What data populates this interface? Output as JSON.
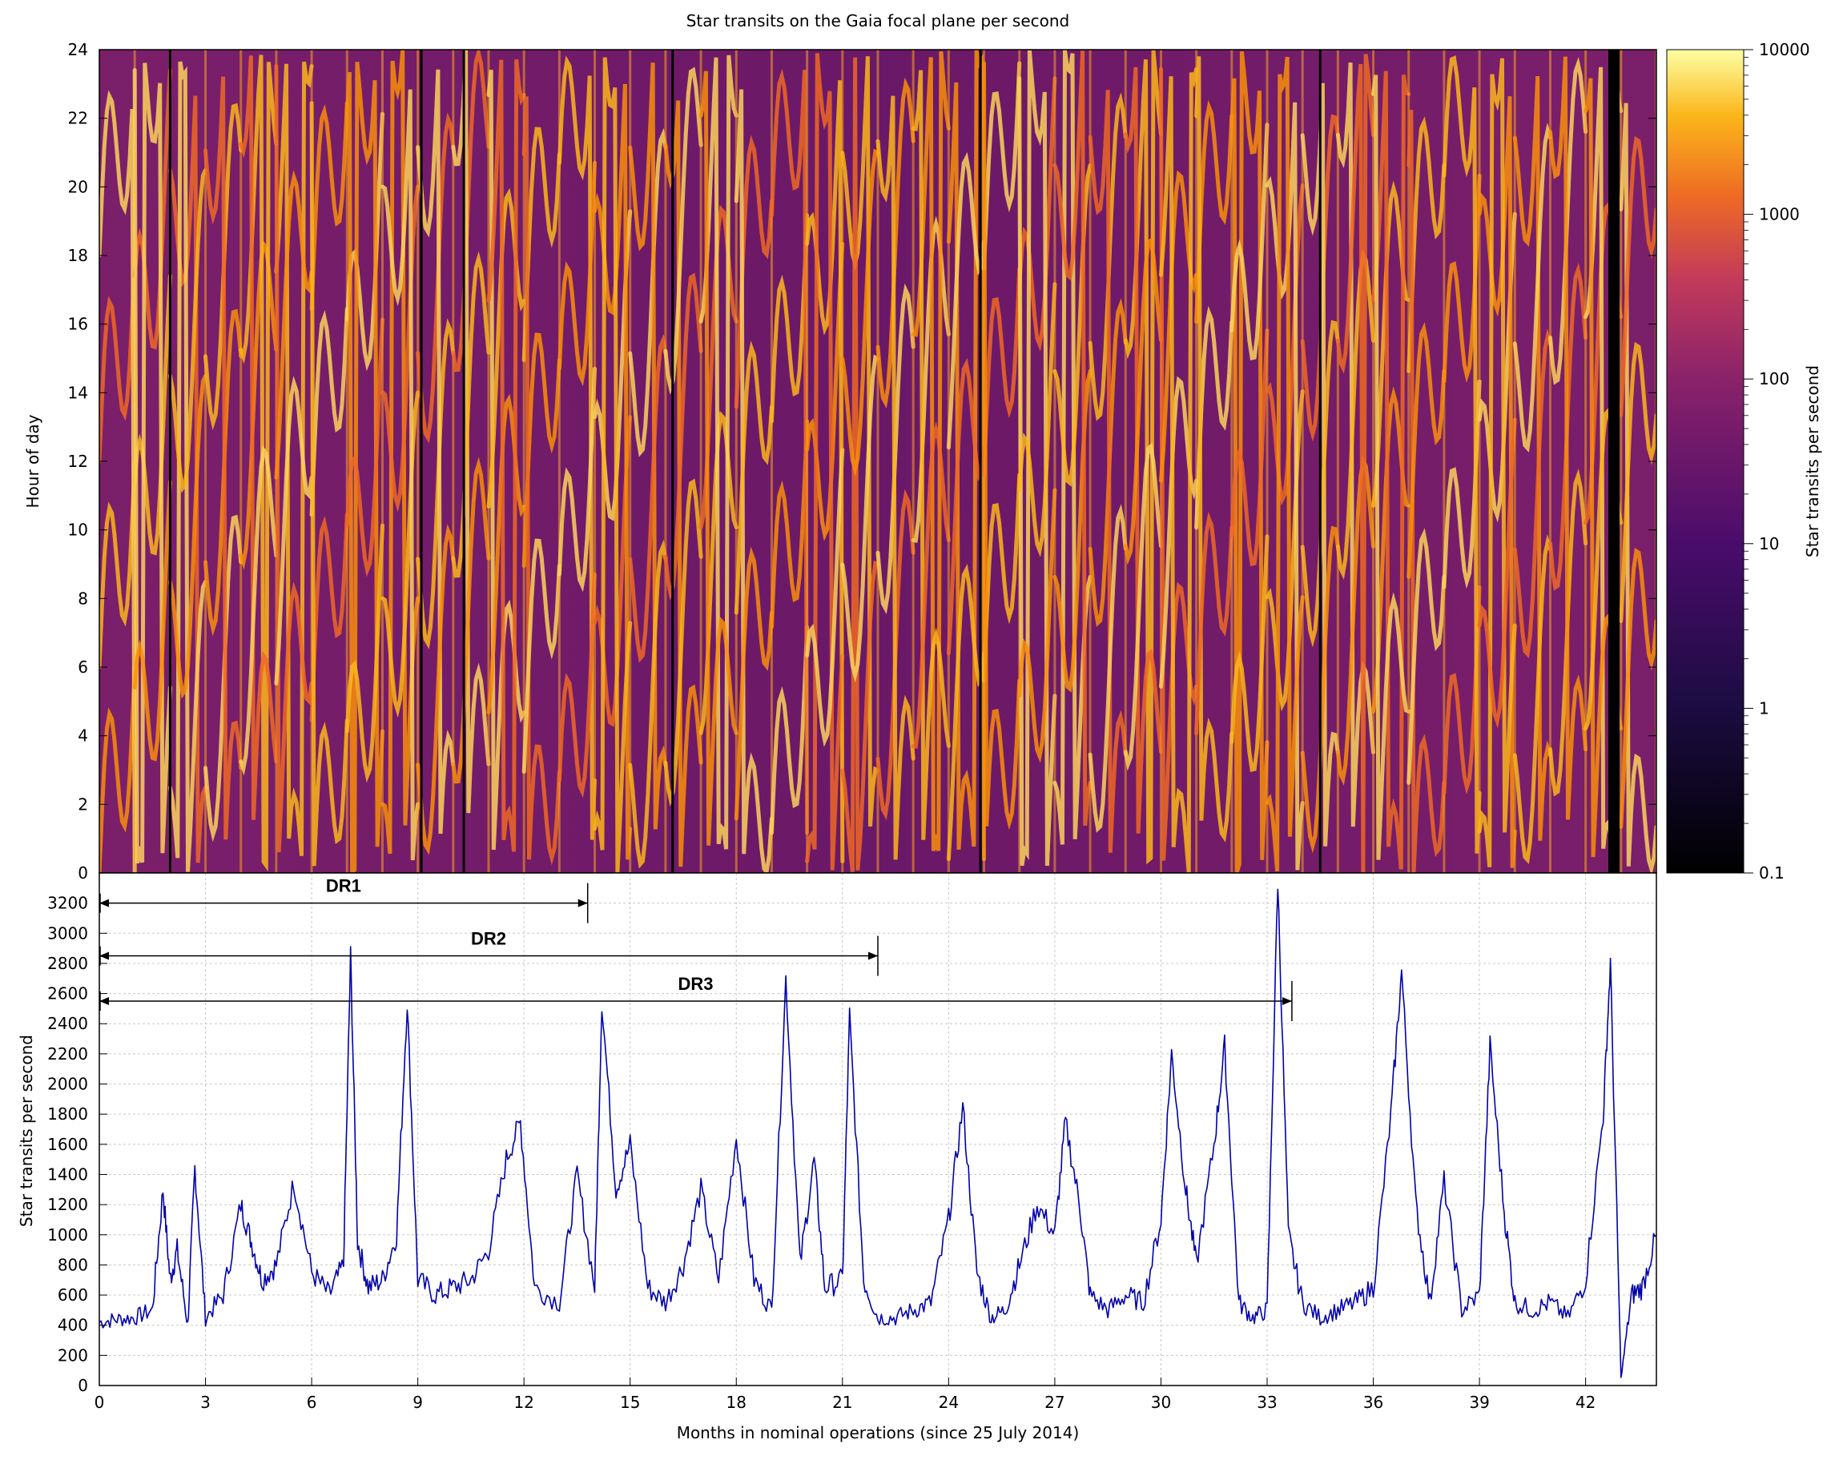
{
  "chart_data": [
    {
      "type": "heatmap",
      "title": "Star transits on the Gaia focal plane per second",
      "ylabel": "Hour of day",
      "ylim": [
        0,
        24
      ],
      "yticks": [
        "0",
        "2",
        "4",
        "6",
        "8",
        "10",
        "12",
        "14",
        "16",
        "18",
        "20",
        "22",
        "24"
      ],
      "xlim": [
        0,
        44
      ],
      "colorbar": {
        "label": "Star transits per second",
        "scale": "log",
        "range": [
          0.1,
          10000
        ],
        "ticks": [
          "0.1",
          "1",
          "10",
          "100",
          "1000",
          "10000"
        ],
        "colors": [
          "#000000",
          "#320a5e",
          "#8a226a",
          "#d44842",
          "#f98e09",
          "#fcffa4"
        ]
      },
      "bright_bands_per_month": 4,
      "gaps_months": [
        2.0,
        9.1,
        10.3,
        16.2,
        24.9,
        34.5,
        42.8
      ]
    },
    {
      "type": "line",
      "xlabel": "Months in nominal operations (since 25 July 2014)",
      "ylabel": "Star transits per second",
      "xlim": [
        0,
        44
      ],
      "ylim": [
        0,
        3400
      ],
      "xticks": [
        "0",
        "3",
        "6",
        "9",
        "12",
        "15",
        "18",
        "21",
        "24",
        "27",
        "30",
        "33",
        "36",
        "39",
        "42"
      ],
      "yticks": [
        "0",
        "200",
        "400",
        "600",
        "800",
        "1000",
        "1200",
        "1400",
        "1600",
        "1800",
        "2000",
        "2200",
        "2400",
        "2600",
        "2800",
        "3000",
        "3200"
      ],
      "grid": true,
      "line_color": "#0000aa",
      "series": [
        {
          "x": [
            0,
            0.5,
            1.0,
            1.5,
            1.8,
            2.0,
            2.2,
            2.5,
            2.7,
            3.0,
            3.5,
            4.0,
            4.3,
            4.6,
            5.0,
            5.5,
            6.0,
            6.5,
            6.9,
            7.1,
            7.3,
            7.6,
            8.0,
            8.4,
            8.7,
            9.0,
            9.5,
            10.0,
            10.5,
            11.0,
            11.5,
            11.9,
            12.3,
            13.0,
            13.5,
            14.0,
            14.2,
            14.6,
            15.0,
            15.5,
            16.0,
            16.5,
            17.0,
            17.5,
            18.0,
            18.5,
            19.0,
            19.4,
            19.8,
            20.2,
            20.5,
            21.0,
            21.2,
            21.6,
            22.0,
            22.5,
            23.0,
            23.5,
            24.0,
            24.4,
            24.8,
            25.2,
            25.6,
            26.0,
            26.5,
            27.0,
            27.3,
            27.7,
            28.0,
            28.5,
            29.0,
            29.5,
            30.0,
            30.3,
            30.7,
            31.0,
            31.5,
            31.8,
            32.2,
            32.6,
            33.0,
            33.3,
            33.6,
            34.0,
            34.5,
            35.0,
            35.5,
            36.0,
            36.5,
            36.8,
            37.2,
            37.6,
            38.0,
            38.5,
            39.0,
            39.3,
            39.7,
            40.0,
            40.5,
            41.0,
            41.5,
            42.0,
            42.5,
            42.7,
            43.0,
            43.3,
            43.6,
            44.0
          ],
          "y": [
            420,
            440,
            450,
            500,
            1300,
            700,
            900,
            400,
            1450,
            450,
            600,
            1200,
            950,
            700,
            800,
            1350,
            750,
            600,
            800,
            2850,
            950,
            650,
            700,
            1000,
            2550,
            700,
            600,
            650,
            700,
            900,
            1500,
            1750,
            650,
            550,
            1400,
            650,
            2550,
            1300,
            1600,
            650,
            550,
            800,
            1300,
            700,
            1650,
            700,
            500,
            2700,
            800,
            1500,
            650,
            700,
            2450,
            700,
            450,
            450,
            500,
            550,
            1100,
            1850,
            750,
            450,
            500,
            800,
            1200,
            1000,
            1750,
            1200,
            600,
            500,
            600,
            550,
            1100,
            2200,
            1300,
            800,
            1600,
            2250,
            550,
            450,
            500,
            3350,
            1000,
            550,
            450,
            500,
            550,
            650,
            1800,
            2750,
            1200,
            550,
            1350,
            500,
            600,
            2250,
            1150,
            550,
            500,
            550,
            450,
            700,
            1800,
            2800,
            50,
            600,
            650,
            1000
          ]
        }
      ],
      "annotations": [
        {
          "label": "DR1",
          "from": 0,
          "to": 13.8,
          "y": 3200
        },
        {
          "label": "DR2",
          "from": 0,
          "to": 22.0,
          "y": 2850
        },
        {
          "label": "DR3",
          "from": 0,
          "to": 33.7,
          "y": 2550
        }
      ]
    }
  ]
}
